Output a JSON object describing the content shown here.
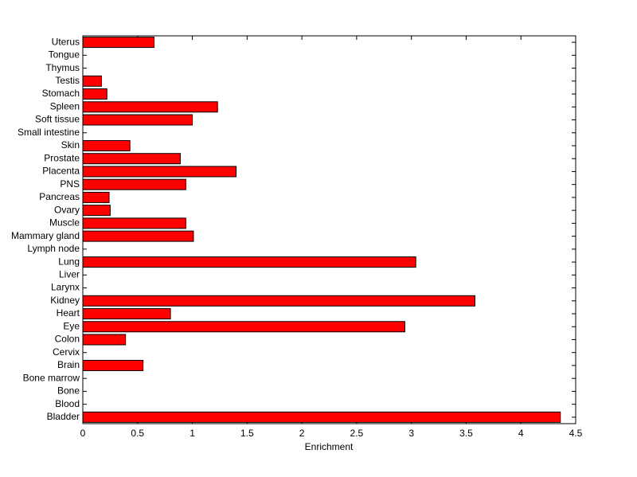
{
  "chart_data": {
    "type": "barh",
    "xlabel": "Enrichment",
    "color": "#ff0000",
    "categories": [
      "Bladder",
      "Blood",
      "Bone",
      "Bone marrow",
      "Brain",
      "Cervix",
      "Colon",
      "Eye",
      "Heart",
      "Kidney",
      "Larynx",
      "Liver",
      "Lung",
      "Lymph node",
      "Mammary gland",
      "Muscle",
      "Ovary",
      "Pancreas",
      "PNS",
      "Placenta",
      "Prostate",
      "Skin",
      "Small intestine",
      "Soft tissue",
      "Spleen",
      "Stomach",
      "Testis",
      "Thymus",
      "Tongue",
      "Uterus"
    ],
    "values": [
      4.36,
      0,
      0,
      0,
      0.55,
      0,
      0.39,
      2.94,
      0.8,
      3.58,
      0,
      0,
      3.04,
      0,
      1.01,
      0.94,
      0.25,
      0.24,
      0.94,
      1.4,
      0.89,
      0.43,
      0,
      1.0,
      1.23,
      0.22,
      0.17,
      0,
      0,
      0.65
    ],
    "xlim": [
      0,
      4.5
    ],
    "xticks": [
      0,
      0.5,
      1,
      1.5,
      2,
      2.5,
      3,
      3.5,
      4,
      4.5
    ]
  }
}
